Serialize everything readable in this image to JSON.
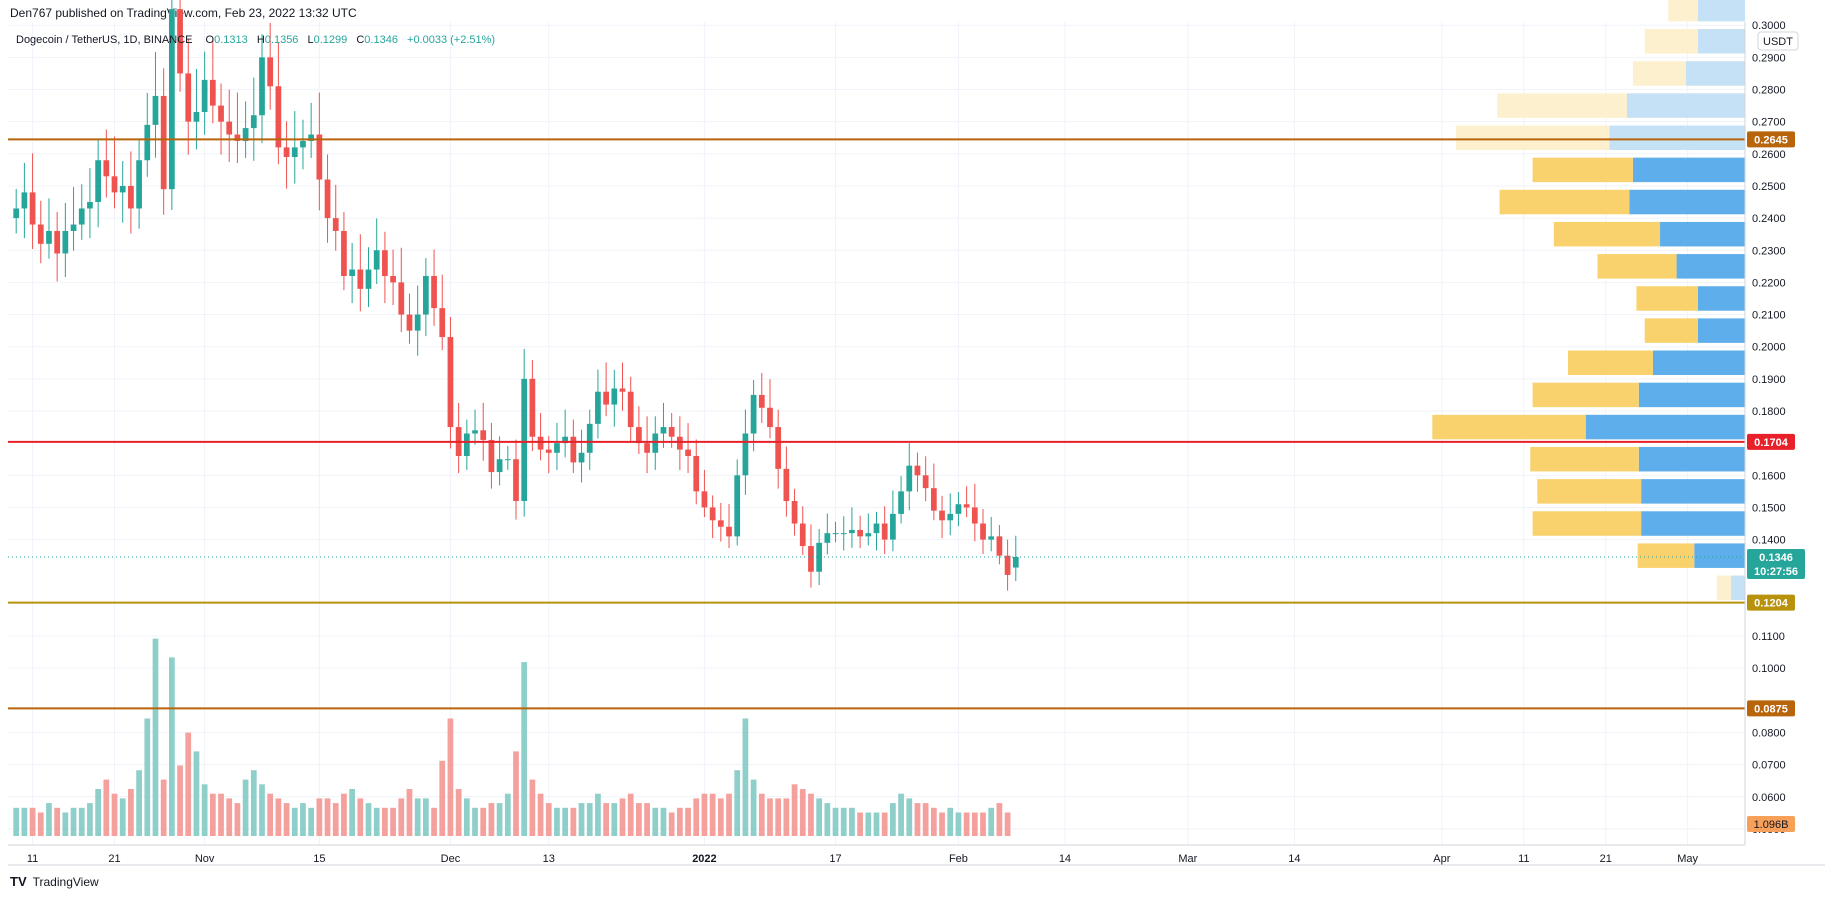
{
  "header": {
    "published": "Den767 published on TradingView.com, Feb 23, 2022 13:32 UTC"
  },
  "legend": {
    "symbol": "Dogecoin / TetherUS, 1D, BINANCE",
    "o_label": "O",
    "o_value": "0.1313",
    "h_label": "H",
    "h_value": "0.1356",
    "l_label": "L",
    "l_value": "0.1299",
    "c_label": "C",
    "c_value": "0.1346",
    "change": "+0.0033 (+2.51%)"
  },
  "currency": "USDT",
  "footer": {
    "logo": "TV",
    "brand": "TradingView"
  },
  "colors": {
    "up": "#26a69a",
    "down": "#ef5350",
    "up_volume": "#8fcfca",
    "down_volume": "#f4a09d",
    "vp_up": "#5daeea",
    "vp_down": "#f9d26e",
    "vp_up_faded": "#c5e1f5",
    "vp_down_faded": "#fdf0cf",
    "line_brown": "#b8640a",
    "line_red": "#e8202a",
    "line_gold": "#b8920a",
    "price_badge": "#26a69a"
  },
  "chart_data": {
    "type": "candlestick",
    "symbol": "Dogecoin / TetherUS",
    "interval": "1D",
    "exchange": "BINANCE",
    "y_axis": {
      "ticks": [
        "0.3000",
        "0.2900",
        "0.2800",
        "0.2700",
        "0.2600",
        "0.2500",
        "0.2400",
        "0.2300",
        "0.2200",
        "0.2100",
        "0.2000",
        "0.1900",
        "0.1800",
        "0.1600",
        "0.1500",
        "0.1400",
        "0.1100",
        "0.1000",
        "0.0800",
        "0.0700",
        "0.0600",
        "0.0500"
      ],
      "range": [
        0.045,
        0.301
      ],
      "unit": "USDT"
    },
    "x_axis": {
      "ticks": [
        {
          "label": "11",
          "date": "2021-10-11"
        },
        {
          "label": "21",
          "date": "2021-10-21"
        },
        {
          "label": "Nov",
          "date": "2021-11-01"
        },
        {
          "label": "15",
          "date": "2021-11-15"
        },
        {
          "label": "Dec",
          "date": "2021-12-01"
        },
        {
          "label": "13",
          "date": "2021-12-13"
        },
        {
          "label": "2022",
          "date": "2022-01-01"
        },
        {
          "label": "17",
          "date": "2022-01-17"
        },
        {
          "label": "Feb",
          "date": "2022-02-01"
        },
        {
          "label": "14",
          "date": "2022-02-14"
        },
        {
          "label": "Mar",
          "date": "2022-03-01"
        },
        {
          "label": "14",
          "date": "2022-03-14"
        },
        {
          "label": "Apr",
          "date": "2022-04-01"
        },
        {
          "label": "11",
          "date": "2022-04-11"
        },
        {
          "label": "21",
          "date": "2022-04-21"
        },
        {
          "label": "May",
          "date": "2022-05-01"
        }
      ],
      "range": [
        "2021-10-08",
        "2022-05-08"
      ]
    },
    "horizontal_lines": [
      {
        "value": "0.2645",
        "color": "#b8640a"
      },
      {
        "value": "0.1704",
        "color": "#e8202a"
      },
      {
        "value": "0.1204",
        "color": "#b8920a"
      },
      {
        "value": "0.0875",
        "color": "#b8640a"
      }
    ],
    "last_price": {
      "value": "0.1346",
      "countdown": "10:27:56"
    },
    "volume_label": "1.096B",
    "close_series": {
      "start": "2021-10-09",
      "closes": [
        0.243,
        0.248,
        0.238,
        0.232,
        0.236,
        0.229,
        0.236,
        0.238,
        0.243,
        0.245,
        0.258,
        0.253,
        0.248,
        0.25,
        0.243,
        0.258,
        0.269,
        0.278,
        0.249,
        0.305,
        0.285,
        0.27,
        0.273,
        0.283,
        0.275,
        0.27,
        0.266,
        0.264,
        0.268,
        0.272,
        0.29,
        0.281,
        0.262,
        0.259,
        0.262,
        0.264,
        0.266,
        0.252,
        0.24,
        0.236,
        0.222,
        0.224,
        0.218,
        0.224,
        0.23,
        0.222,
        0.22,
        0.21,
        0.205,
        0.21,
        0.222,
        0.212,
        0.203,
        0.175,
        0.166,
        0.173,
        0.174,
        0.171,
        0.161,
        0.165,
        0.165,
        0.152,
        0.19,
        0.172,
        0.168,
        0.167,
        0.17,
        0.172,
        0.164,
        0.167,
        0.176,
        0.186,
        0.182,
        0.187,
        0.186,
        0.175,
        0.17,
        0.167,
        0.173,
        0.175,
        0.172,
        0.168,
        0.166,
        0.155,
        0.15,
        0.146,
        0.144,
        0.141,
        0.16,
        0.173,
        0.185,
        0.181,
        0.175,
        0.162,
        0.152,
        0.145,
        0.138,
        0.13,
        0.139,
        0.142,
        0.142,
        0.142,
        0.143,
        0.141,
        0.142,
        0.145,
        0.14,
        0.148,
        0.155,
        0.163,
        0.16,
        0.156,
        0.149,
        0.146,
        0.148,
        0.151,
        0.15,
        0.145,
        0.14,
        0.141,
        0.135,
        0.129,
        0.1346
      ],
      "opens": [
        0.24,
        0.243,
        0.248,
        0.238,
        0.232,
        0.236,
        0.229,
        0.236,
        0.238,
        0.243,
        0.245,
        0.258,
        0.253,
        0.248,
        0.25,
        0.243,
        0.258,
        0.269,
        0.278,
        0.249,
        0.305,
        0.285,
        0.27,
        0.273,
        0.283,
        0.275,
        0.27,
        0.266,
        0.264,
        0.268,
        0.272,
        0.29,
        0.281,
        0.262,
        0.259,
        0.262,
        0.264,
        0.266,
        0.252,
        0.24,
        0.236,
        0.222,
        0.224,
        0.218,
        0.224,
        0.23,
        0.222,
        0.22,
        0.21,
        0.205,
        0.21,
        0.222,
        0.212,
        0.203,
        0.175,
        0.166,
        0.173,
        0.174,
        0.171,
        0.161,
        0.165,
        0.165,
        0.152,
        0.19,
        0.172,
        0.168,
        0.167,
        0.17,
        0.172,
        0.164,
        0.167,
        0.176,
        0.186,
        0.182,
        0.187,
        0.186,
        0.175,
        0.17,
        0.167,
        0.173,
        0.175,
        0.172,
        0.168,
        0.166,
        0.155,
        0.15,
        0.146,
        0.144,
        0.141,
        0.16,
        0.173,
        0.185,
        0.181,
        0.175,
        0.162,
        0.152,
        0.145,
        0.138,
        0.13,
        0.139,
        0.142,
        0.142,
        0.142,
        0.143,
        0.141,
        0.142,
        0.145,
        0.14,
        0.148,
        0.155,
        0.163,
        0.16,
        0.156,
        0.149,
        0.146,
        0.148,
        0.151,
        0.15,
        0.145,
        0.14,
        0.141,
        0.135,
        0.1313
      ],
      "volumes": [
        0.6,
        0.6,
        0.6,
        0.5,
        0.7,
        0.6,
        0.5,
        0.6,
        0.6,
        0.7,
        1.0,
        1.2,
        0.9,
        0.8,
        1.0,
        1.4,
        2.5,
        4.2,
        1.2,
        3.8,
        1.5,
        2.2,
        1.8,
        1.1,
        0.9,
        0.9,
        0.8,
        0.7,
        1.2,
        1.4,
        1.1,
        0.9,
        0.8,
        0.7,
        0.6,
        0.7,
        0.6,
        0.8,
        0.8,
        0.7,
        0.9,
        1.0,
        0.8,
        0.7,
        0.6,
        0.6,
        0.6,
        0.8,
        1.0,
        0.8,
        0.8,
        0.6,
        1.6,
        2.5,
        1.0,
        0.8,
        0.6,
        0.6,
        0.7,
        0.7,
        0.9,
        1.8,
        3.7,
        1.2,
        0.9,
        0.7,
        0.6,
        0.6,
        0.6,
        0.7,
        0.7,
        0.9,
        0.7,
        0.7,
        0.8,
        0.9,
        0.7,
        0.7,
        0.6,
        0.6,
        0.5,
        0.6,
        0.6,
        0.8,
        0.9,
        0.9,
        0.8,
        0.9,
        1.4,
        2.5,
        1.2,
        0.9,
        0.8,
        0.8,
        0.8,
        1.1,
        1.0,
        0.9,
        0.8,
        0.7,
        0.6,
        0.6,
        0.6,
        0.5,
        0.5,
        0.5,
        0.5,
        0.7,
        0.9,
        0.8,
        0.7,
        0.7,
        0.6,
        0.5,
        0.6,
        0.5,
        0.5,
        0.5,
        0.5,
        0.6,
        0.7,
        0.5
      ]
    },
    "volume_profile": [
      {
        "price": 0.3,
        "up": 0.4,
        "down": 0.25,
        "faded": true
      },
      {
        "price": 0.29,
        "up": 0.4,
        "down": 0.45,
        "faded": true
      },
      {
        "price": 0.28,
        "up": 0.5,
        "down": 0.45,
        "faded": true
      },
      {
        "price": 0.27,
        "up": 1.0,
        "down": 1.1,
        "faded": true
      },
      {
        "price": 0.26,
        "up": 1.15,
        "down": 1.3,
        "faded": true
      },
      {
        "price": 0.25,
        "up": 0.95,
        "down": 0.85,
        "faded": false
      },
      {
        "price": 0.24,
        "up": 0.98,
        "down": 1.1,
        "faded": false
      },
      {
        "price": 0.23,
        "up": 0.72,
        "down": 0.9,
        "faded": false
      },
      {
        "price": 0.22,
        "up": 0.58,
        "down": 0.67,
        "faded": false
      },
      {
        "price": 0.21,
        "up": 0.4,
        "down": 0.52,
        "faded": false
      },
      {
        "price": 0.2,
        "up": 0.4,
        "down": 0.45,
        "faded": false
      },
      {
        "price": 0.19,
        "up": 0.78,
        "down": 0.72,
        "faded": false
      },
      {
        "price": 0.18,
        "up": 0.9,
        "down": 0.9,
        "faded": false
      },
      {
        "price": 0.17,
        "up": 1.35,
        "down": 1.3,
        "faded": false
      },
      {
        "price": 0.16,
        "up": 0.9,
        "down": 0.92,
        "faded": false
      },
      {
        "price": 0.15,
        "up": 0.88,
        "down": 0.88,
        "faded": false
      },
      {
        "price": 0.14,
        "up": 0.88,
        "down": 0.92,
        "faded": false
      },
      {
        "price": 0.13,
        "up": 0.43,
        "down": 0.48,
        "faded": false
      },
      {
        "price": 0.12,
        "up": 0.12,
        "down": 0.12,
        "faded": true
      }
    ]
  }
}
